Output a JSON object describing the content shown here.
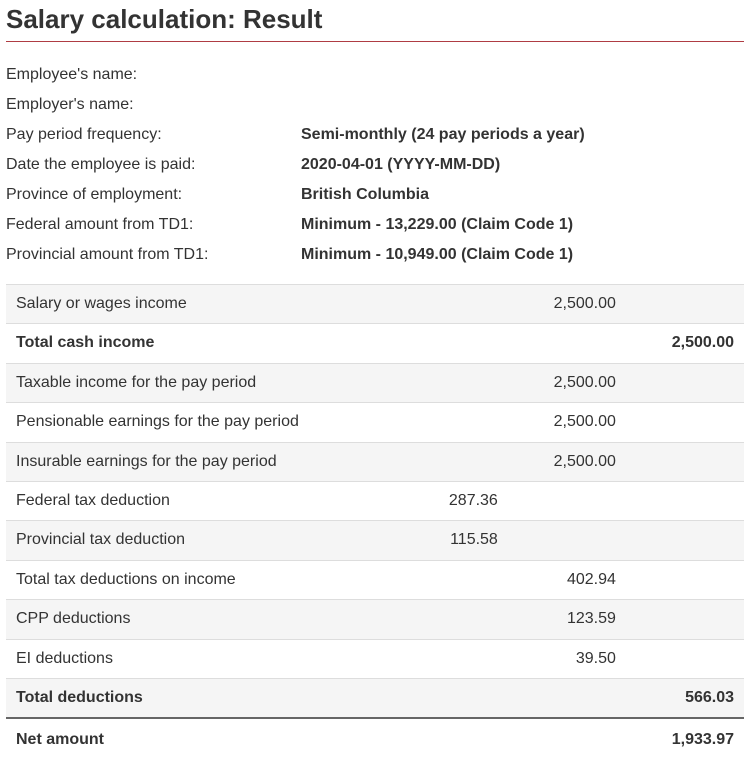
{
  "title": "Salary calculation: Result",
  "colors": {
    "title_underline": "#af3c43",
    "row_border": "#dddddd",
    "alt_row_bg": "#f5f5f5",
    "net_border": "#666666",
    "text": "#333333",
    "background": "#ffffff"
  },
  "info": {
    "employee_name": {
      "label": "Employee's name:",
      "value": ""
    },
    "employer_name": {
      "label": "Employer's name:",
      "value": ""
    },
    "pay_frequency": {
      "label": "Pay period frequency:",
      "value": "Semi-monthly (24 pay periods a year)"
    },
    "pay_date": {
      "label": "Date the employee is paid:",
      "value": "2020-04-01 (YYYY-MM-DD)"
    },
    "province": {
      "label": "Province of employment:",
      "value": "British Columbia"
    },
    "federal_td1": {
      "label": "Federal amount from TD1:",
      "value": "Minimum - 13,229.00 (Claim Code 1)"
    },
    "provincial_td1": {
      "label": "Provincial amount from TD1:",
      "value": "Minimum - 10,949.00 (Claim Code 1)"
    }
  },
  "rows": {
    "salary_income": {
      "label": "Salary or wages income",
      "col3": "2,500.00"
    },
    "total_cash_income": {
      "label": "Total cash income",
      "col4": "2,500.00"
    },
    "taxable_income": {
      "label": "Taxable income for the pay period",
      "col3": "2,500.00"
    },
    "pensionable": {
      "label": "Pensionable earnings for the pay period",
      "col3": "2,500.00"
    },
    "insurable": {
      "label": "Insurable earnings for the pay period",
      "col3": "2,500.00"
    },
    "federal_tax": {
      "label": "Federal tax deduction",
      "col2": "287.36"
    },
    "provincial_tax": {
      "label": "Provincial tax deduction",
      "col2": "115.58"
    },
    "total_tax": {
      "label": "Total tax deductions on income",
      "col3": "402.94"
    },
    "cpp": {
      "label": "CPP deductions",
      "col3": "123.59"
    },
    "ei": {
      "label": "EI deductions",
      "col3": "39.50"
    },
    "total_deductions": {
      "label": "Total deductions",
      "col4": "566.03"
    },
    "net": {
      "label": "Net amount",
      "col4": "1,933.97"
    }
  }
}
